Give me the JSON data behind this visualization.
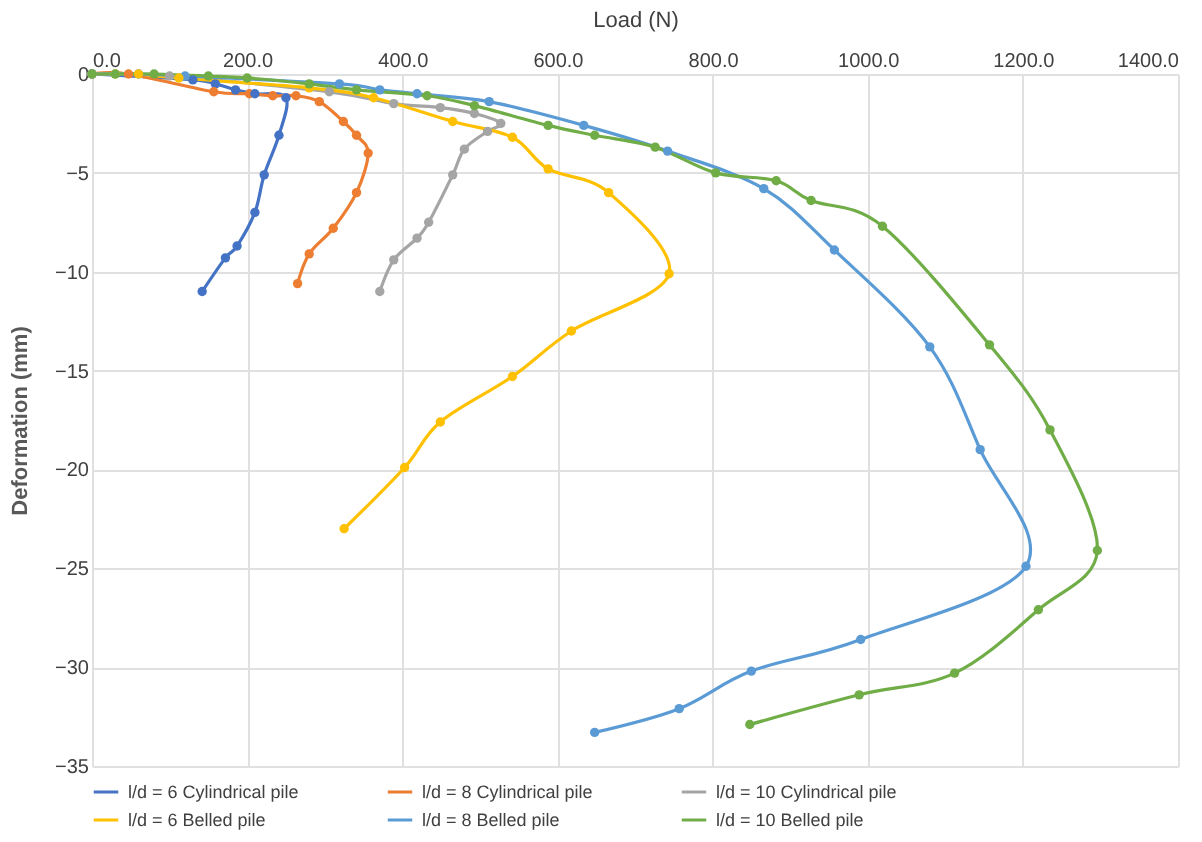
{
  "chart_data": {
    "type": "line",
    "xlabel": "Load (N)",
    "ylabel": "Deformation (mm)",
    "xlim": [
      0,
      1400
    ],
    "xticks": [
      {
        "value": 0,
        "label": "0.0"
      },
      {
        "value": 200,
        "label": "200.0"
      },
      {
        "value": 400,
        "label": "400.0"
      },
      {
        "value": 600,
        "label": "600.0"
      },
      {
        "value": 800,
        "label": "800.0"
      },
      {
        "value": 1000,
        "label": "1000.0"
      },
      {
        "value": 1200,
        "label": "1200.0"
      },
      {
        "value": 1400,
        "label": "1400.0"
      }
    ],
    "ylim": [
      -35,
      0
    ],
    "yticks": [
      -35,
      -30,
      -25,
      -20,
      -15,
      -10,
      -5,
      0
    ],
    "grid": true,
    "legend": "bottom",
    "marker": "circle",
    "line_style": "solid",
    "series": [
      {
        "name": "l/d = 6 Cylindrical pile",
        "color": "#4472c4",
        "x": [
          0,
          130,
          159,
          185,
          210,
          250,
          241,
          222,
          210,
          187,
          172,
          142
        ],
        "values": [
          0,
          -0.3,
          -0.5,
          -0.8,
          -1.0,
          -1.2,
          -3.1,
          -5.1,
          -7.0,
          -8.7,
          -9.3,
          -11.0
        ]
      },
      {
        "name": "l/d = 8 Cylindrical pile",
        "color": "#ed7d31",
        "x": [
          0,
          47,
          157,
          203,
          233,
          263,
          293,
          324,
          341,
          356,
          341,
          311,
          280,
          265
        ],
        "values": [
          0,
          0,
          -0.9,
          -1.0,
          -1.1,
          -1.1,
          -1.4,
          -2.4,
          -3.1,
          -4.0,
          -6.0,
          -7.8,
          -9.1,
          -10.6
        ]
      },
      {
        "name": "l/d = 10 Cylindrical pile",
        "color": "#a5a5a5",
        "x": [
          0,
          100,
          306,
          389,
          449,
          493,
          527,
          510,
          480,
          465,
          434,
          419,
          389,
          371
        ],
        "values": [
          0,
          -0.1,
          -0.9,
          -1.5,
          -1.7,
          -2.0,
          -2.5,
          -2.9,
          -3.8,
          -5.1,
          -7.5,
          -8.3,
          -9.4,
          -11.0
        ]
      },
      {
        "name": "l/d = 6 Belled pile",
        "color": "#ffc000",
        "x": [
          0,
          30,
          60,
          112,
          280,
          363,
          465,
          542,
          588,
          666,
          744,
          618,
          542,
          449,
          403,
          325
        ],
        "values": [
          0,
          0,
          0,
          -0.2,
          -0.7,
          -1.2,
          -2.4,
          -3.2,
          -4.8,
          -6.0,
          -10.1,
          -13.0,
          -15.3,
          -17.6,
          -19.9,
          -23.0
        ]
      },
      {
        "name": "l/d = 8 Belled pile",
        "color": "#5b9bd5",
        "x": [
          0,
          60,
          120,
          319,
          371,
          419,
          512,
          634,
          742,
          866,
          957,
          1080,
          1145,
          1204,
          991,
          850,
          757,
          648
        ],
        "values": [
          0,
          0,
          -0.1,
          -0.5,
          -0.8,
          -1.0,
          -1.4,
          -2.6,
          -3.9,
          -5.8,
          -8.9,
          -13.8,
          -19.0,
          -24.9,
          -28.6,
          -30.2,
          -32.1,
          -33.3
        ]
      },
      {
        "name": "l/d = 10 Belled pile",
        "color": "#70ad47",
        "x": [
          0,
          30,
          80,
          150,
          200,
          280,
          341,
          432,
          493,
          588,
          648,
          726,
          804,
          882,
          927,
          1019,
          1157,
          1235,
          1296,
          1220,
          1112,
          989,
          848
        ],
        "values": [
          0,
          0,
          0,
          -0.1,
          -0.2,
          -0.5,
          -0.8,
          -1.1,
          -1.6,
          -2.6,
          -3.1,
          -3.7,
          -5.0,
          -5.4,
          -6.4,
          -7.7,
          -13.7,
          -18.0,
          -24.1,
          -27.1,
          -30.3,
          -31.4,
          -32.9
        ]
      }
    ]
  }
}
